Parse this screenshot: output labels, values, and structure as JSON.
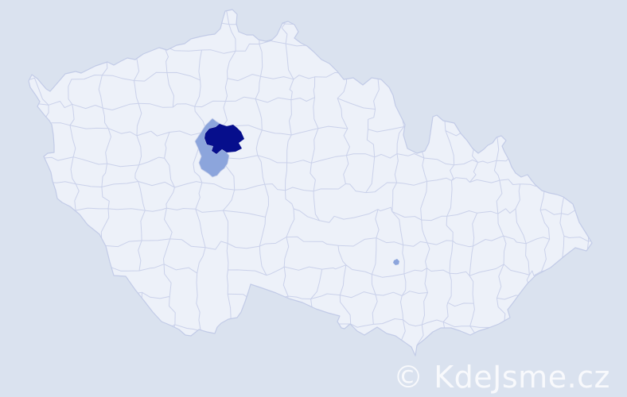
{
  "watermark": {
    "text": "© KdeJsme.cz",
    "color": "rgba(255,255,255,0.80)"
  },
  "map": {
    "colors": {
      "sea": "#dae2ef",
      "land": "#edf1f9",
      "district_border": "#cad1ea",
      "country_outline": "#c2cbe7",
      "highlight_primary": "#060e8c",
      "highlight_secondary": "#8ca5dc"
    }
  }
}
